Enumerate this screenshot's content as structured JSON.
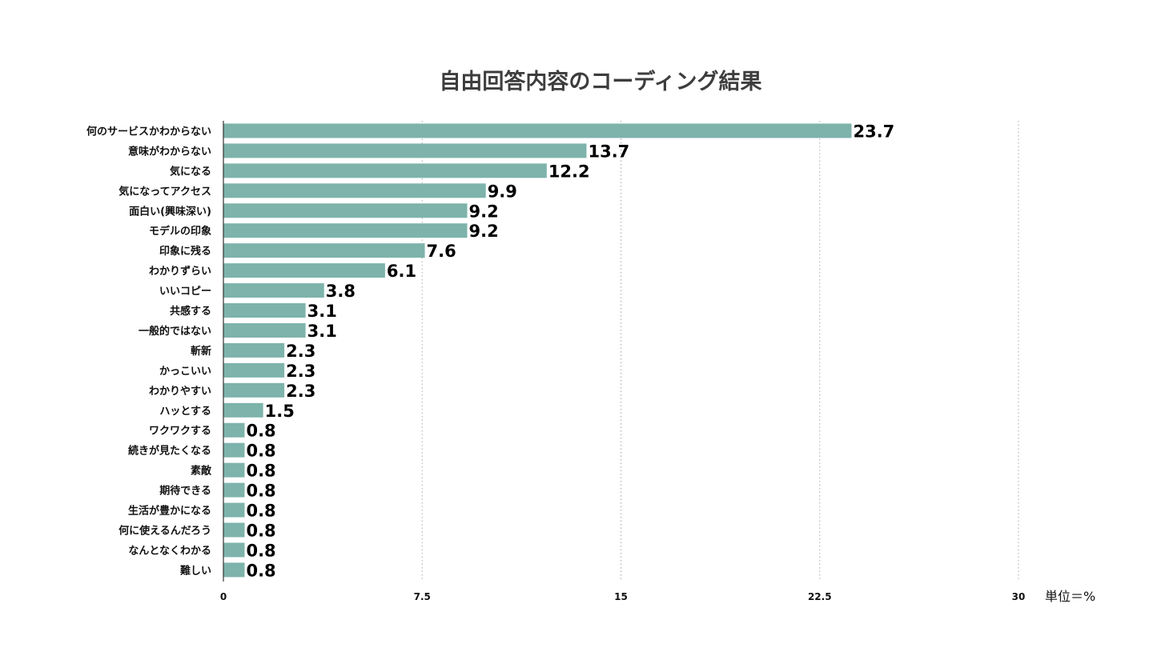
{
  "chart_data": {
    "type": "bar",
    "orientation": "horizontal",
    "title": "自由回答内容のコーディング結果",
    "unit_label": "単位＝%",
    "categories": [
      "何のサービスかわからない",
      "意味がわからない",
      "気になる",
      "気になってアクセス",
      "面白い(興味深い)",
      "モデルの印象",
      "印象に残る",
      "わかりずらい",
      "いいコピー",
      "共感する",
      "一般的ではない",
      "斬新",
      "かっこいい",
      "わかりやすい",
      "ハッとする",
      "ワクワクする",
      "続きが見たくなる",
      "素敵",
      "期待できる",
      "生活が豊かになる",
      "何に使えるんだろう",
      "なんとなくわかる",
      "難しい"
    ],
    "values": [
      23.7,
      13.7,
      12.2,
      9.9,
      9.2,
      9.2,
      7.6,
      6.1,
      3.8,
      3.1,
      3.1,
      2.3,
      2.3,
      2.3,
      1.5,
      0.8,
      0.8,
      0.8,
      0.8,
      0.8,
      0.8,
      0.8,
      0.8
    ],
    "value_labels": [
      "23.7",
      "13.7",
      "12.2",
      "9.9",
      "9.2",
      "9.2",
      "7.6",
      "6.1",
      "3.8",
      "3.1",
      "3.1",
      "2.3",
      "2.3",
      "2.3",
      "1.5",
      "0.8",
      "0.8",
      "0.8",
      "0.8",
      "0.8",
      "0.8",
      "0.8",
      "0.8"
    ],
    "xlim": [
      0,
      30
    ],
    "xticks": [
      0,
      7.5,
      15,
      22.5,
      30
    ],
    "xtick_labels": [
      "0",
      "7.5",
      "15",
      "22.5",
      "30"
    ],
    "grid": true,
    "bar_color": "#7db3ab",
    "axis_color": "#333333",
    "grid_color": "#aaaaaa"
  }
}
